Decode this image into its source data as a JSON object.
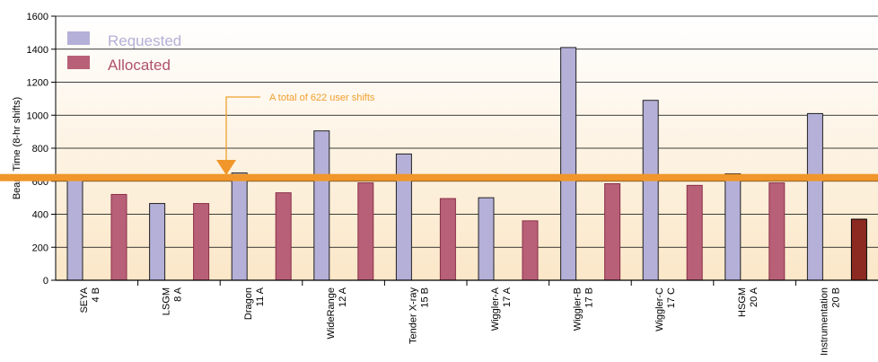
{
  "colors": {
    "requested": "#b4b0d8",
    "allocated": "#b86078",
    "allocated_highlight": "#8c2a22",
    "requested_text": "#b4b0d8",
    "allocated_text": "#b0526e",
    "threshold_line": "#f0962a",
    "annotation": "#f0a030",
    "plot_bg_top": "#ffffff",
    "plot_bg_bottom": "#fbe7c8"
  },
  "chart_data": {
    "type": "bar",
    "title": "",
    "xlabel": "",
    "ylabel": "Beam Time (8-hr shifts)",
    "ylim": [
      0,
      1600
    ],
    "yticks": [
      "0",
      "200",
      "400",
      "600",
      "800",
      "1000",
      "1200",
      "1400",
      "1600"
    ],
    "grid": true,
    "legend_placement": "top-left",
    "categories": [
      [
        "SEYA",
        "4 B"
      ],
      [
        "LSGM",
        "8 A"
      ],
      [
        "Dragon",
        "11 A"
      ],
      [
        "WideRange",
        "12 A"
      ],
      [
        "Tender X-ray",
        "15 B"
      ],
      [
        "Wiggler-A",
        "17 A"
      ],
      [
        "Wiggler-B",
        "17 B"
      ],
      [
        "Wiggler-C",
        "17 C"
      ],
      [
        "HSGM",
        "20 A"
      ],
      [
        "Instrumentation",
        "20 B"
      ]
    ],
    "series": [
      {
        "name": "Requested",
        "values": [
          610,
          465,
          650,
          905,
          765,
          500,
          1410,
          1090,
          645,
          1010
        ]
      },
      {
        "name": "Allocated",
        "values": [
          520,
          465,
          530,
          590,
          495,
          360,
          585,
          575,
          590,
          370
        ]
      }
    ],
    "reference_line": {
      "value": 622
    },
    "annotation": "A total of 622 user shifts"
  }
}
